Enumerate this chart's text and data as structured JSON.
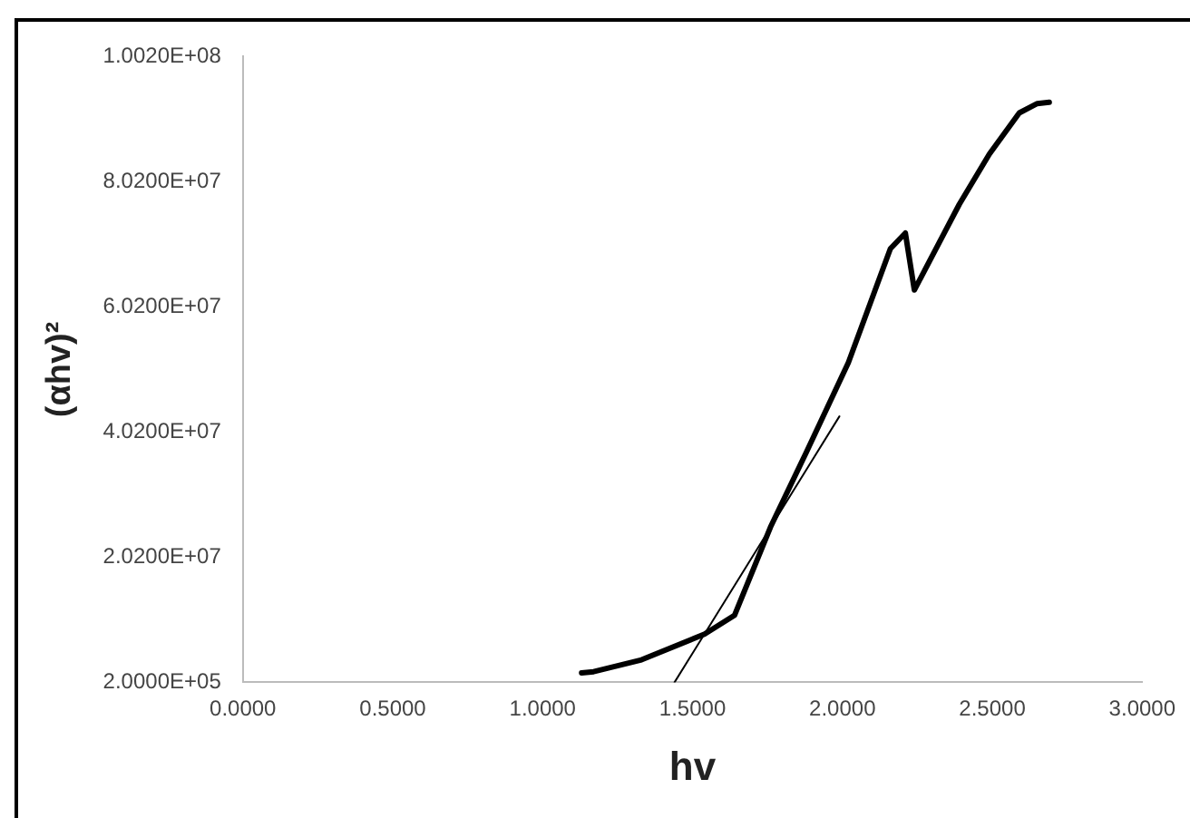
{
  "chart_data": {
    "type": "line",
    "xlabel": "hv",
    "ylabel": "(αhv)²",
    "xlim": [
      0,
      3
    ],
    "xticks": [
      {
        "value": 0,
        "label": "0.0000"
      },
      {
        "value": 0.5,
        "label": "0.5000"
      },
      {
        "value": 1,
        "label": "1.0000"
      },
      {
        "value": 1.5,
        "label": "1.5000"
      },
      {
        "value": 2,
        "label": "2.0000"
      },
      {
        "value": 2.5,
        "label": "2.5000"
      },
      {
        "value": 3,
        "label": "3.0000"
      }
    ],
    "ylim": [
      200000,
      100200000
    ],
    "yticks": [
      {
        "value": 200000,
        "label": "2.0000E+05"
      },
      {
        "value": 20200000,
        "label": "2.0200E+07"
      },
      {
        "value": 40200000,
        "label": "4.0200E+07"
      },
      {
        "value": 60200000,
        "label": "6.0200E+07"
      },
      {
        "value": 80200000,
        "label": "8.0200E+07"
      },
      {
        "value": 100200000,
        "label": "1.0020E+08"
      }
    ],
    "series": [
      {
        "color": "#000000",
        "x": [
          1.13,
          1.17,
          1.33,
          1.54,
          1.64,
          1.76,
          1.88,
          2.02,
          2.16,
          2.21,
          2.24,
          2.39,
          2.49,
          2.59,
          2.65,
          2.69
        ],
        "values": [
          1700000,
          1900000,
          3800000,
          7900000,
          10900000,
          25000000,
          37000000,
          51300000,
          69500000,
          72000000,
          62900000,
          76600000,
          84600000,
          91200000,
          92700000,
          92900000
        ]
      },
      {
        "color": "#000000",
        "x": [
          1.44,
          1.99
        ],
        "values": [
          200000,
          42700000
        ]
      }
    ],
    "grid": false,
    "legend": false,
    "marker": "none",
    "line_style": "solid"
  }
}
